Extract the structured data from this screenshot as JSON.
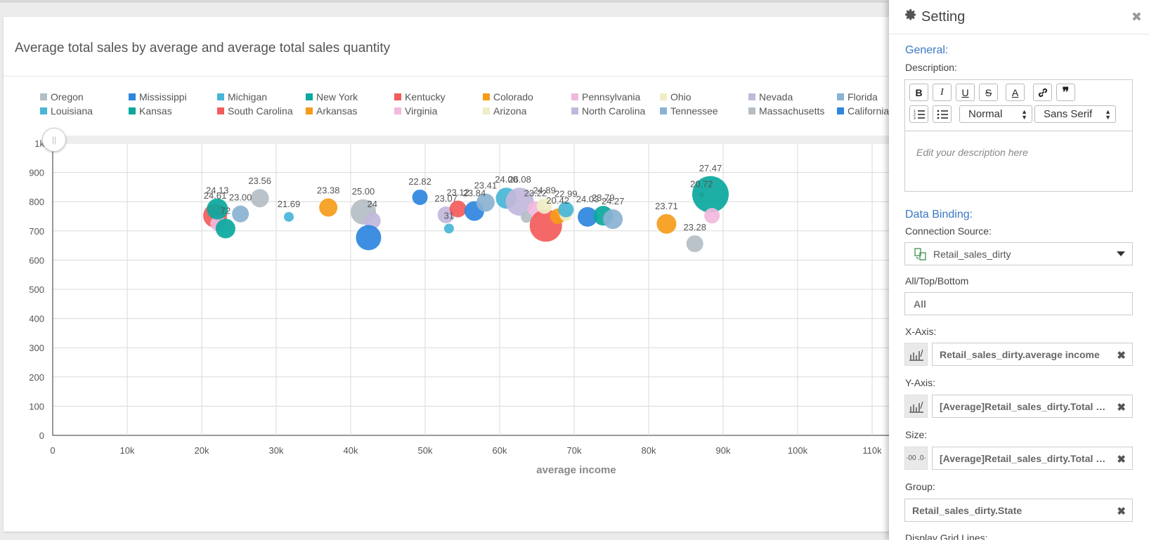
{
  "chart_title": "Average total sales by average and average total sales quantity",
  "legend": [
    {
      "name": "Oregon",
      "color": "#b4bec4"
    },
    {
      "name": "Mississippi",
      "color": "#2e86de"
    },
    {
      "name": "Michigan",
      "color": "#48b6d6"
    },
    {
      "name": "New York",
      "color": "#0aa89e"
    },
    {
      "name": "Kentucky",
      "color": "#f45b5b"
    },
    {
      "name": "Colorado",
      "color": "#f59c1a"
    },
    {
      "name": "Pennsylvania",
      "color": "#f2b8dd"
    },
    {
      "name": "Ohio",
      "color": "#efeec4"
    },
    {
      "name": "Nevada",
      "color": "#c2b8dc"
    },
    {
      "name": "Florida",
      "color": "#8ab2d3"
    },
    {
      "name": "Louisiana",
      "color": "#48b6d6"
    },
    {
      "name": "Kansas",
      "color": "#0aa89e"
    },
    {
      "name": "South Carolina",
      "color": "#f45b5b"
    },
    {
      "name": "Arkansas",
      "color": "#f59c1a"
    },
    {
      "name": "Virginia",
      "color": "#f2b8dd"
    },
    {
      "name": "Arizona",
      "color": "#efeec4"
    },
    {
      "name": "North Carolina",
      "color": "#c2b8dc"
    },
    {
      "name": "Tennessee",
      "color": "#8ab2d3"
    },
    {
      "name": "Massachusetts",
      "color": "#b4bec4"
    },
    {
      "name": "California",
      "color": "#2e86de"
    }
  ],
  "chart_data": {
    "type": "scatter",
    "title": "Average total sales by average and average total sales quantity",
    "xlabel": "average income",
    "ylabel": "",
    "xlim": [
      0,
      110000
    ],
    "ylim": [
      0,
      1000
    ],
    "x_ticks": [
      "0",
      "10k",
      "20k",
      "30k",
      "40k",
      "50k",
      "60k",
      "70k",
      "80k",
      "90k",
      "100k",
      "110k"
    ],
    "y_ticks": [
      "0",
      "100",
      "200",
      "300",
      "400",
      "500",
      "600",
      "700",
      "800",
      "900",
      "1k"
    ],
    "grid": true,
    "points": [
      {
        "x": 21800,
        "y": 752,
        "r": 17,
        "color": "#f45b5b",
        "label": "24.61"
      },
      {
        "x": 22200,
        "y": 725,
        "r": 11,
        "color": "#f2b8dd",
        "label": ""
      },
      {
        "x": 22100,
        "y": 775,
        "r": 15,
        "color": "#0aa89e",
        "label": "24.13"
      },
      {
        "x": 23200,
        "y": 708,
        "r": 14,
        "color": "#0aa89e",
        "label": "72"
      },
      {
        "x": 25200,
        "y": 758,
        "r": 12,
        "color": "#8ab2d3",
        "label": "23.00"
      },
      {
        "x": 27800,
        "y": 812,
        "r": 13,
        "color": "#b4bec4",
        "label": "23.56"
      },
      {
        "x": 31700,
        "y": 748,
        "r": 7,
        "color": "#48b6d6",
        "label": "21.69"
      },
      {
        "x": 37000,
        "y": 780,
        "r": 13,
        "color": "#f59c1a",
        "label": "23.38"
      },
      {
        "x": 41700,
        "y": 765,
        "r": 18,
        "color": "#b4bec4",
        "label": "25.00"
      },
      {
        "x": 42900,
        "y": 735,
        "r": 12,
        "color": "#c2b8dc",
        "label": "24"
      },
      {
        "x": 42400,
        "y": 677,
        "r": 18,
        "color": "#2e86de",
        "label": ""
      },
      {
        "x": 49300,
        "y": 815,
        "r": 11,
        "color": "#2e86de",
        "label": "22.82"
      },
      {
        "x": 52800,
        "y": 755,
        "r": 12,
        "color": "#c2b8dc",
        "label": "23.07"
      },
      {
        "x": 53200,
        "y": 708,
        "r": 7,
        "color": "#48b6d6",
        "label": "31"
      },
      {
        "x": 54400,
        "y": 775,
        "r": 12,
        "color": "#f45b5b",
        "label": "23.12"
      },
      {
        "x": 56600,
        "y": 768,
        "r": 14,
        "color": "#2e86de",
        "label": "23.84"
      },
      {
        "x": 58100,
        "y": 797,
        "r": 13,
        "color": "#8ab2d3",
        "label": "23.41"
      },
      {
        "x": 60900,
        "y": 812,
        "r": 15,
        "color": "#48b6d6",
        "label": "24.00"
      },
      {
        "x": 62700,
        "y": 800,
        "r": 20,
        "color": "#c2b8dc",
        "label": "26.08"
      },
      {
        "x": 63600,
        "y": 747,
        "r": 8,
        "color": "#b4bec4",
        "label": ""
      },
      {
        "x": 64800,
        "y": 775,
        "r": 11,
        "color": "#f2b8dd",
        "label": "23.22"
      },
      {
        "x": 66200,
        "y": 718,
        "r": 23,
        "color": "#f45b5b",
        "label": ""
      },
      {
        "x": 66000,
        "y": 785,
        "r": 11,
        "color": "#efeec4",
        "label": "24.89"
      },
      {
        "x": 67800,
        "y": 750,
        "r": 11,
        "color": "#f59c1a",
        "label": "20.42"
      },
      {
        "x": 68900,
        "y": 755,
        "r": 9,
        "color": "#efeec4",
        "label": ""
      },
      {
        "x": 68900,
        "y": 773,
        "r": 11,
        "color": "#48b6d6",
        "label": "22.99"
      },
      {
        "x": 71800,
        "y": 748,
        "r": 14,
        "color": "#2e86de",
        "label": "24.03"
      },
      {
        "x": 73900,
        "y": 752,
        "r": 14,
        "color": "#0aa89e",
        "label": "23.79"
      },
      {
        "x": 75200,
        "y": 740,
        "r": 14,
        "color": "#8ab2d3",
        "label": "24.27"
      },
      {
        "x": 82400,
        "y": 724,
        "r": 14,
        "color": "#f59c1a",
        "label": "23.71"
      },
      {
        "x": 86200,
        "y": 656,
        "r": 12,
        "color": "#b4bec4",
        "label": "23.28"
      },
      {
        "x": 87100,
        "y": 823,
        "r": 4,
        "color": "#f45b5b",
        "label": "20.72"
      },
      {
        "x": 88300,
        "y": 825,
        "r": 26,
        "color": "#0aa89e",
        "label": "27.47"
      },
      {
        "x": 88500,
        "y": 752,
        "r": 11,
        "color": "#f2b8dd",
        "label": ""
      }
    ]
  },
  "panel": {
    "title": "Setting",
    "close_icon": "close-icon",
    "general_title": "General:",
    "description_label": "Description:",
    "toolbar": {
      "bold": "B",
      "italic": "I",
      "underline": "U",
      "strike": "S",
      "font_color": "A",
      "link": "🔗",
      "quote": "❞",
      "heading_select": "Normal",
      "font_select": "Sans Serif"
    },
    "description_placeholder": "Edit your description here",
    "data_binding_title": "Data Binding:",
    "connection_source_label": "Connection Source:",
    "connection_source_value": "Retail_sales_dirty",
    "all_top_bottom_label": "All/Top/Bottom",
    "all_top_bottom_value": "All",
    "x_axis_label": "X-Axis:",
    "x_axis_value": "Retail_sales_dirty.average income",
    "y_axis_label": "Y-Axis:",
    "y_axis_value": "[Average]Retail_sales_dirty.Total Sa...",
    "size_label": "Size:",
    "size_value": "[Average]Retail_sales_dirty.Total sa...",
    "size_icon_text": "·00 .0·",
    "group_label": "Group:",
    "group_value": "Retail_sales_dirty.State",
    "display_grid_label": "Display Grid Lines:"
  }
}
